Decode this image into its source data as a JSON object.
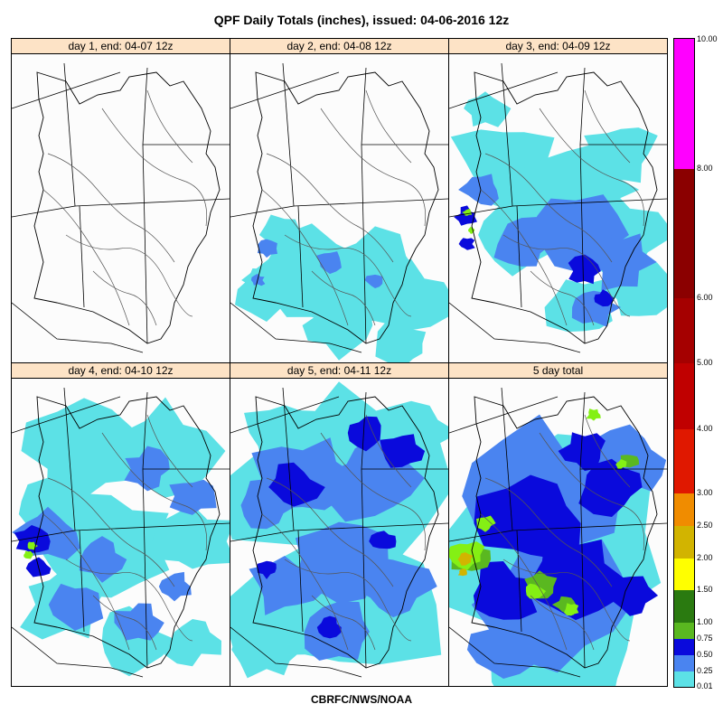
{
  "title": "QPF Daily Totals (inches),  issued: 04-06-2016 12z",
  "footer": "CBRFC/NWS/NOAA",
  "panels": [
    {
      "label": "day 1, end: 04-07 12z",
      "coverage": "none"
    },
    {
      "label": "day 2, end: 04-08 12z",
      "coverage": "light"
    },
    {
      "label": "day 3, end: 04-09 12z",
      "coverage": "moderate"
    },
    {
      "label": "day 4, end: 04-10 12z",
      "coverage": "moderate-west"
    },
    {
      "label": "day 5, end: 04-11 12z",
      "coverage": "widespread"
    },
    {
      "label": "5 day total",
      "coverage": "heavy"
    }
  ],
  "legend": {
    "labels": [
      "10.00",
      "8.00",
      "6.00",
      "5.00",
      "4.00",
      "3.00",
      "2.50",
      "2.00",
      "1.50",
      "1.00",
      "0.75",
      "0.50",
      "0.25",
      "0.01"
    ],
    "colors": [
      "#8e44c8",
      "#ff00ff",
      "#8b0000",
      "#a50000",
      "#c00000",
      "#e01800",
      "#f08c00",
      "#d2b400",
      "#ffff00",
      "#2a7a10",
      "#5ab820",
      "#84f014",
      "#0a0adc",
      "#4a84f0",
      "#5ce1e6"
    ]
  },
  "map_colors": {
    "border": "#000000",
    "river": "#555555",
    "light": "#5ce1e6",
    "medium": "#4a84f0",
    "heavy": "#0a0adc",
    "green": "#84f014",
    "dkgreen": "#5ab820",
    "yellow": "#d2b400"
  }
}
